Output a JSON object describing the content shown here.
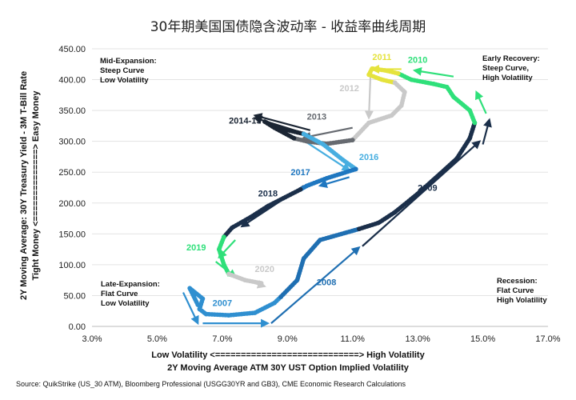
{
  "chart_data": {
    "type": "scatter",
    "title": "30年期美国国债隐含波动率 - 收益率曲线周期",
    "xlabel_line1": "Low Volatility <============================> High Volatility",
    "xlabel_line2": "2Y Moving Average ATM 30Y UST Option Implied Volatility",
    "ylabel_line1": "2Y Moving Average: 30Y Treasury Yield - 3M T-Bill Rate",
    "ylabel_line2": "Tight Money <==============> Easy Money",
    "source": "Source: QuikStrike (US_30 ATM), Bloomberg Professional (USGG30YR and GB3), CME Economic Research Calculations",
    "xlim": [
      3.0,
      17.0
    ],
    "ylim": [
      0,
      450
    ],
    "x_ticks": [
      "3.0%",
      "5.0%",
      "7.0%",
      "9.0%",
      "11.0%",
      "13.0%",
      "15.0%",
      "17.0%"
    ],
    "y_ticks": [
      "0.00",
      "50.00",
      "100.00",
      "150.00",
      "200.00",
      "250.00",
      "300.00",
      "350.00",
      "400.00",
      "450.00"
    ],
    "quadrant_notes": [
      {
        "lines": [
          "Mid-Expansion:",
          "Steep Curve",
          "Low Volatility"
        ]
      },
      {
        "lines": [
          "Early Recovery:",
          "Steep Curve,",
          "High Volatility"
        ]
      },
      {
        "lines": [
          "Late-Expansion:",
          "Flat Curve",
          "Low Volatility"
        ]
      },
      {
        "lines": [
          "Recession:",
          "Flat Curve",
          "High Volatility"
        ]
      }
    ],
    "series": [
      {
        "name": "2007",
        "color": "#2f8fd0",
        "points": [
          [
            6.25,
            35
          ],
          [
            6.0,
            62
          ],
          [
            6.4,
            45
          ],
          [
            6.3,
            28
          ],
          [
            6.5,
            20
          ],
          [
            7.2,
            18
          ],
          [
            8.0,
            22
          ],
          [
            8.6,
            38
          ],
          [
            8.8,
            48
          ]
        ]
      },
      {
        "name": "2008",
        "color": "#1f6fb2",
        "points": [
          [
            8.8,
            48
          ],
          [
            9.3,
            75
          ],
          [
            9.5,
            110
          ],
          [
            10.0,
            140
          ],
          [
            10.8,
            152
          ],
          [
            11.2,
            158
          ]
        ]
      },
      {
        "name": "2009",
        "color": "#1b2f4a",
        "points": [
          [
            11.2,
            158
          ],
          [
            11.8,
            168
          ],
          [
            12.3,
            185
          ],
          [
            13.0,
            215
          ],
          [
            13.7,
            248
          ],
          [
            14.2,
            272
          ],
          [
            14.6,
            305
          ],
          [
            14.75,
            330
          ]
        ]
      },
      {
        "name": "2010",
        "color": "#2fe07a",
        "points": [
          [
            14.75,
            330
          ],
          [
            14.6,
            350
          ],
          [
            14.1,
            372
          ],
          [
            13.9,
            388
          ],
          [
            13.5,
            393
          ],
          [
            12.8,
            400
          ],
          [
            12.4,
            410
          ]
        ]
      },
      {
        "name": "2011",
        "color": "#e5e33d",
        "points": [
          [
            12.4,
            410
          ],
          [
            12.0,
            415
          ],
          [
            11.6,
            418
          ],
          [
            11.5,
            408
          ],
          [
            11.9,
            400
          ],
          [
            12.3,
            395
          ]
        ]
      },
      {
        "name": "2012",
        "color": "#c9c9c9",
        "points": [
          [
            12.3,
            395
          ],
          [
            12.6,
            380
          ],
          [
            12.5,
            358
          ],
          [
            12.2,
            342
          ],
          [
            11.5,
            330
          ],
          [
            11.0,
            302
          ]
        ]
      },
      {
        "name": "2013",
        "color": "#666a70",
        "points": [
          [
            11.0,
            302
          ],
          [
            10.2,
            296
          ],
          [
            9.6,
            300
          ],
          [
            9.2,
            305
          ]
        ]
      },
      {
        "name": "2014-15",
        "color": "#1b2533",
        "points": [
          [
            9.2,
            305
          ],
          [
            8.6,
            322
          ],
          [
            8.3,
            332
          ],
          [
            8.7,
            322
          ],
          [
            9.5,
            312
          ]
        ]
      },
      {
        "name": "2016",
        "color": "#47aee0",
        "points": [
          [
            9.5,
            312
          ],
          [
            10.1,
            295
          ],
          [
            10.7,
            270
          ],
          [
            11.1,
            255
          ]
        ]
      },
      {
        "name": "2017",
        "color": "#1f77c0",
        "points": [
          [
            11.1,
            255
          ],
          [
            10.2,
            240
          ],
          [
            9.6,
            228
          ],
          [
            9.4,
            222
          ]
        ]
      },
      {
        "name": "2018",
        "color": "#1b2f4a",
        "points": [
          [
            9.4,
            222
          ],
          [
            8.4,
            195
          ],
          [
            7.9,
            178
          ],
          [
            7.3,
            160
          ],
          [
            7.05,
            145
          ]
        ]
      },
      {
        "name": "2019",
        "color": "#2fe07a",
        "points": [
          [
            7.05,
            145
          ],
          [
            6.9,
            125
          ],
          [
            7.05,
            100
          ],
          [
            7.2,
            85
          ]
        ]
      },
      {
        "name": "2020",
        "color": "#c9c9c9",
        "points": [
          [
            7.2,
            85
          ],
          [
            7.7,
            75
          ],
          [
            8.2,
            70
          ]
        ]
      }
    ],
    "year_labels": [
      {
        "text": "2007",
        "color": "#2f8fd0",
        "x": 7.0,
        "y": 33
      },
      {
        "text": "2008",
        "color": "#1f6fb2",
        "x": 10.2,
        "y": 67
      },
      {
        "text": "2009",
        "color": "#1b2f4a",
        "x": 13.3,
        "y": 220
      },
      {
        "text": "2010",
        "color": "#2fe07a",
        "x": 13.0,
        "y": 427
      },
      {
        "text": "2011",
        "color": "#e5e33d",
        "x": 11.9,
        "y": 432
      },
      {
        "text": "2012",
        "color": "#c9c9c9",
        "x": 10.9,
        "y": 381
      },
      {
        "text": "2013",
        "color": "#666a70",
        "x": 9.9,
        "y": 335
      },
      {
        "text": "2014-15",
        "color": "#1b2533",
        "x": 7.7,
        "y": 329
      },
      {
        "text": "2016",
        "color": "#47aee0",
        "x": 11.5,
        "y": 270
      },
      {
        "text": "2017",
        "color": "#1f77c0",
        "x": 9.4,
        "y": 245
      },
      {
        "text": "2018",
        "color": "#1b2f4a",
        "x": 8.4,
        "y": 211
      },
      {
        "text": "2019",
        "color": "#2fe07a",
        "x": 6.2,
        "y": 123
      },
      {
        "text": "2020",
        "color": "#c9c9c9",
        "x": 8.3,
        "y": 88
      }
    ],
    "arrows": [
      {
        "color": "#2f8fd0",
        "from": [
          5.8,
          55
        ],
        "to": [
          6.25,
          5
        ]
      },
      {
        "color": "#2f8fd0",
        "from": [
          6.4,
          5
        ],
        "to": [
          8.4,
          5
        ]
      },
      {
        "color": "#1f6fb2",
        "from": [
          8.5,
          5
        ],
        "to": [
          11.2,
          128
        ]
      },
      {
        "color": "#1b2f4a",
        "from": [
          11.3,
          130
        ],
        "to": [
          14.9,
          300
        ]
      },
      {
        "color": "#1b2f4a",
        "from": [
          15.0,
          295
        ],
        "to": [
          15.2,
          335
        ]
      },
      {
        "color": "#2fe07a",
        "from": [
          15.1,
          345
        ],
        "to": [
          14.8,
          380
        ]
      },
      {
        "color": "#2fe07a",
        "from": [
          14.1,
          405
        ],
        "to": [
          12.9,
          415
        ]
      },
      {
        "color": "#e5e33d",
        "from": [
          12.5,
          417
        ],
        "to": [
          11.6,
          417
        ]
      },
      {
        "color": "#c9c9c9",
        "from": [
          11.55,
          408
        ],
        "to": [
          11.5,
          338
        ]
      },
      {
        "color": "#666a70",
        "from": [
          11.0,
          322
        ],
        "to": [
          9.5,
          306
        ]
      },
      {
        "color": "#1b2533",
        "from": [
          9.7,
          318
        ],
        "to": [
          8.0,
          342
        ]
      },
      {
        "color": "#1b2533",
        "from": [
          9.7,
          310
        ],
        "to": [
          8.0,
          338
        ]
      },
      {
        "color": "#47aee0",
        "from": [
          9.6,
          298
        ],
        "to": [
          10.9,
          253
        ]
      },
      {
        "color": "#1f77c0",
        "from": [
          10.9,
          242
        ],
        "to": [
          10.0,
          228
        ]
      },
      {
        "color": "#1b2f4a",
        "from": [
          9.5,
          228
        ],
        "to": [
          7.6,
          162
        ]
      },
      {
        "color": "#2fe07a",
        "from": [
          7.4,
          140
        ],
        "to": [
          6.9,
          112
        ]
      },
      {
        "color": "#2fe07a",
        "from": [
          6.8,
          105
        ],
        "to": [
          7.4,
          80
        ]
      },
      {
        "color": "#c9c9c9",
        "from": [
          7.5,
          78
        ],
        "to": [
          8.3,
          65
        ]
      }
    ]
  }
}
